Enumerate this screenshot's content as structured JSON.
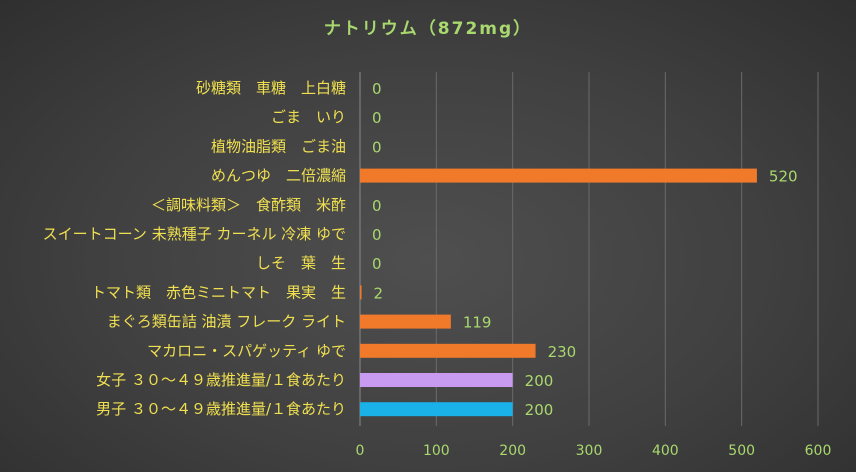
{
  "chart_data": {
    "type": "bar",
    "orientation": "horizontal",
    "title": "ナトリウム（872mg）",
    "categories": [
      "砂糖類　車糖　上白糖",
      "ごま　いり",
      "植物油脂類　ごま油",
      "めんつゆ　二倍濃縮",
      "＜調味料類＞　食酢類　米酢",
      "スイートコーン 未熟種子 カーネル 冷凍 ゆで",
      "しそ　葉　生",
      "トマト類　赤色ミニトマト　果実　生",
      "まぐろ類缶詰 油漬 フレーク ライト",
      "マカロニ・スパゲッティ ゆで",
      "女子 ３０～４９歳推進量/１食あたり",
      "男子 ３０～４９歳推進量/１食あたり"
    ],
    "values": [
      0,
      0,
      0,
      520,
      0,
      0,
      0,
      2,
      119,
      230,
      200,
      200
    ],
    "bar_colors": [
      "#f07a2a",
      "#f07a2a",
      "#f07a2a",
      "#f07a2a",
      "#f07a2a",
      "#f07a2a",
      "#f07a2a",
      "#f07a2a",
      "#f07a2a",
      "#f07a2a",
      "#c89af0",
      "#1ab0e8"
    ],
    "xlim": [
      0,
      600
    ],
    "xticks": [
      0,
      100,
      200,
      300,
      400,
      500,
      600
    ],
    "grid": true,
    "legend": "none",
    "xlabel": "",
    "ylabel": ""
  },
  "colors": {
    "title": "#a8d86e",
    "category_label": "#f0e050",
    "value_label": "#a8d86e",
    "tick_label": "#a8d86e",
    "gridline": "#6a6a6a"
  }
}
